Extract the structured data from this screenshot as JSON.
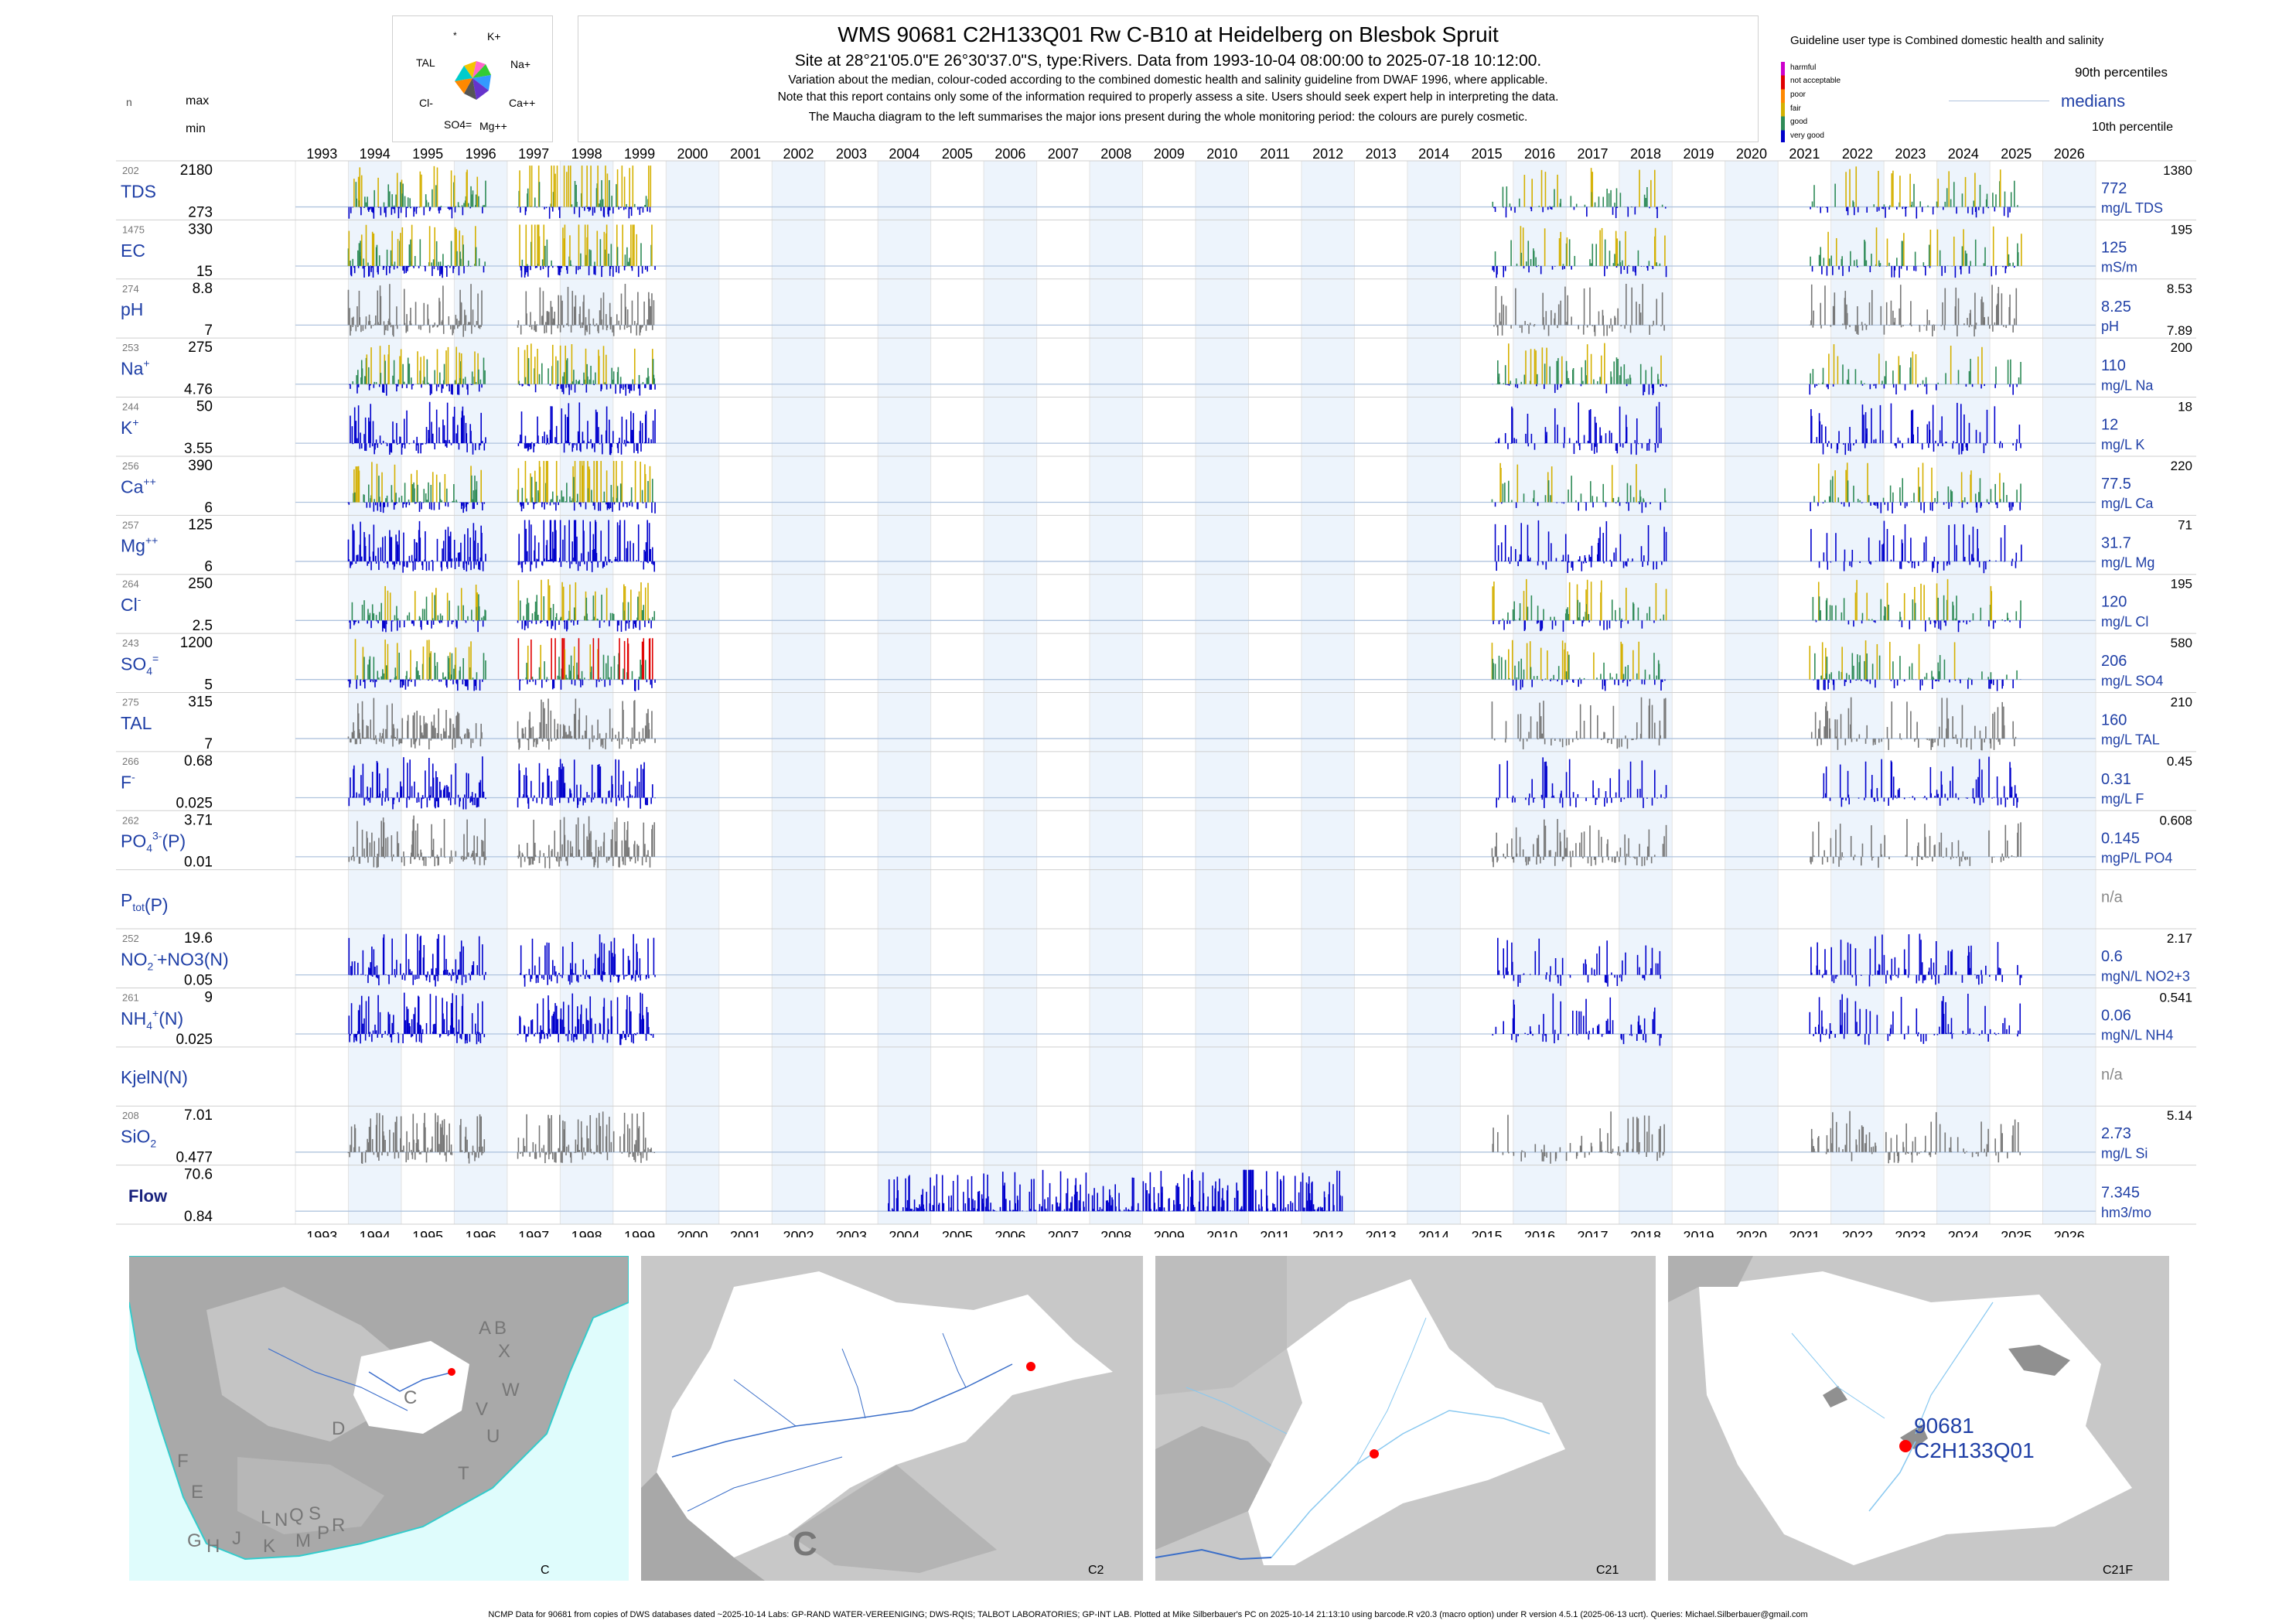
{
  "header": {
    "title": "WMS 90681 C2H133Q01 Rw C-B10 at Heidelberg on Blesbok Spruit",
    "site_line": "Site at 28°21'05.0\"E 26°30'37.0\"S, type:Rivers.  Data from 1993-10-04 08:00:00 to 2025-07-18 10:12:00.",
    "note1": "Variation about the median,  colour-coded according to the combined domestic health and salinity guideline from DWAF 1996, where applicable.",
    "note2": "Note that this report contains only some of the information required to properly assess a site. Users should seek expert help in interpreting the data.",
    "note3": "The Maucha diagram to the left summarises the major ions present during the whole monitoring period: the colours are purely cosmetic."
  },
  "maucha": {
    "labels": {
      "k": "K+",
      "na": "Na+",
      "ca": "Ca++",
      "mg": "Mg++",
      "so4": "SO4=",
      "cl": "Cl-",
      "tal": "TAL"
    }
  },
  "left_header": {
    "n": "n",
    "max": "max",
    "min": "min"
  },
  "legend": {
    "title": "Guideline user type is Combined domestic health and salinity",
    "items": [
      {
        "label": "harmful",
        "color": "#cc00cc"
      },
      {
        "label": "not acceptable",
        "color": "#e00000"
      },
      {
        "label": "poor",
        "color": "#ff8800"
      },
      {
        "label": "fair",
        "color": "#d4b000"
      },
      {
        "label": "good",
        "color": "#2e8b57"
      },
      {
        "label": "very good",
        "color": "#0000cc"
      }
    ],
    "p90": "90th percentiles",
    "medians": "medians",
    "p10": "10th percentile"
  },
  "chart_data": {
    "type": "bar",
    "x_years": [
      "1993",
      "1994",
      "1995",
      "1996",
      "1997",
      "1998",
      "1999",
      "2000",
      "2001",
      "2002",
      "2003",
      "2004",
      "2005",
      "2006",
      "2007",
      "2008",
      "2009",
      "2010",
      "2011",
      "2012",
      "2013",
      "2014",
      "2015",
      "2016",
      "2017",
      "2018",
      "2019",
      "2020",
      "2021",
      "2022",
      "2023",
      "2024",
      "2025",
      "2026"
    ],
    "rows": [
      {
        "key": "tds",
        "label": "TDS",
        "sup": "",
        "sub": "",
        "n": "202",
        "max": "2180",
        "min": "273",
        "median": "772",
        "unit": "mg/L TDS",
        "p90": "1380",
        "p10": "",
        "color": "#2e8b57",
        "mode": "guide"
      },
      {
        "key": "ec",
        "label": "EC",
        "sup": "",
        "sub": "",
        "n": "1475",
        "max": "330",
        "min": "15",
        "median": "125",
        "unit": "mS/m",
        "p90": "195",
        "p10": "",
        "color": "#2e8b57",
        "mode": "guide"
      },
      {
        "key": "ph",
        "label": "pH",
        "sup": "",
        "sub": "",
        "n": "274",
        "max": "8.8",
        "min": "7",
        "median": "8.25",
        "unit": "pH",
        "p90": "8.53",
        "p10": "7.89",
        "color": "#777777",
        "mode": "grey"
      },
      {
        "key": "na",
        "label": "Na",
        "sup": "+",
        "sub": "",
        "n": "253",
        "max": "275",
        "min": "4.76",
        "median": "110",
        "unit": "mg/L Na",
        "p90": "200",
        "p10": "",
        "color": "#2e8b57",
        "mode": "guide"
      },
      {
        "key": "k",
        "label": "K",
        "sup": "+",
        "sub": "",
        "n": "244",
        "max": "50",
        "min": "3.55",
        "median": "12",
        "unit": "mg/L K",
        "p90": "18",
        "p10": "",
        "color": "#0000cc",
        "mode": "blue"
      },
      {
        "key": "ca",
        "label": "Ca",
        "sup": "++",
        "sub": "",
        "n": "256",
        "max": "390",
        "min": "6",
        "median": "77.5",
        "unit": "mg/L Ca",
        "p90": "220",
        "p10": "",
        "color": "#2e8b57",
        "mode": "guide"
      },
      {
        "key": "mg",
        "label": "Mg",
        "sup": "++",
        "sub": "",
        "n": "257",
        "max": "125",
        "min": "6",
        "median": "31.7",
        "unit": "mg/L Mg",
        "p90": "71",
        "p10": "",
        "color": "#0000cc",
        "mode": "blue"
      },
      {
        "key": "cl",
        "label": "Cl",
        "sup": "-",
        "sub": "",
        "n": "264",
        "max": "250",
        "min": "2.5",
        "median": "120",
        "unit": "mg/L Cl",
        "p90": "195",
        "p10": "",
        "color": "#2e8b57",
        "mode": "guide"
      },
      {
        "key": "so4",
        "label": "SO",
        "sup": "=",
        "sub": "4",
        "n": "243",
        "max": "1200",
        "min": "5",
        "median": "206",
        "unit": "mg/L SO4",
        "p90": "580",
        "p10": "",
        "color": "#2e8b57",
        "mode": "guide"
      },
      {
        "key": "tal",
        "label": "TAL",
        "sup": "",
        "sub": "",
        "n": "275",
        "max": "315",
        "min": "7",
        "median": "160",
        "unit": "mg/L TAL",
        "p90": "210",
        "p10": "",
        "color": "#777777",
        "mode": "grey"
      },
      {
        "key": "f",
        "label": "F",
        "sup": "-",
        "sub": "",
        "n": "266",
        "max": "0.68",
        "min": "0.025",
        "median": "0.31",
        "unit": "mg/L F",
        "p90": "0.45",
        "p10": "",
        "color": "#0000cc",
        "mode": "blue"
      },
      {
        "key": "po4",
        "label": "PO",
        "sup": "3-",
        "sub": "4",
        "label2": "(P)",
        "n": "262",
        "max": "3.71",
        "min": "0.01",
        "median": "0.145",
        "unit": "mgP/L PO4",
        "p90": "0.608",
        "p10": "",
        "color": "#777777",
        "mode": "grey"
      },
      {
        "key": "ptot",
        "label": "P",
        "sup": "",
        "sub": "tot",
        "label2": "(P)",
        "n": "",
        "max": "",
        "min": "",
        "median": "n/a",
        "unit": "",
        "p90": "",
        "p10": "",
        "color": "#777777",
        "mode": "none"
      },
      {
        "key": "no",
        "label": "NO",
        "sup": "-",
        "sub": "2",
        "label2": "+NO3(N)",
        "n": "252",
        "max": "19.6",
        "min": "0.05",
        "median": "0.6",
        "unit": "mgN/L NO2+3",
        "p90": "2.17",
        "p10": "",
        "color": "#0000cc",
        "mode": "blue"
      },
      {
        "key": "nh4",
        "label": "NH",
        "sup": "+",
        "sub": "4",
        "label2": "(N)",
        "n": "261",
        "max": "9",
        "min": "0.025",
        "median": "0.06",
        "unit": "mgN/L NH4",
        "p90": "0.541",
        "p10": "",
        "color": "#0000cc",
        "mode": "blue"
      },
      {
        "key": "kjel",
        "label": "KjelN(N)",
        "sup": "",
        "sub": "",
        "n": "",
        "max": "",
        "min": "",
        "median": "n/a",
        "unit": "",
        "p90": "",
        "p10": "",
        "color": "#777777",
        "mode": "none"
      },
      {
        "key": "sio2",
        "label": "SiO",
        "sup": "",
        "sub": "2",
        "n": "208",
        "max": "7.01",
        "min": "0.477",
        "median": "2.73",
        "unit": "mg/L Si",
        "p90": "5.14",
        "p10": "",
        "color": "#777777",
        "mode": "grey"
      },
      {
        "key": "flow",
        "label": "Flow",
        "sup": "",
        "sub": "",
        "n": "",
        "max": "70.6",
        "min": "0.84",
        "median": "7.345",
        "unit": "hm3/mo",
        "p90": "",
        "p10": "",
        "color": "#0000cc",
        "mode": "flow"
      }
    ]
  },
  "maps": [
    {
      "label": "C",
      "letters": [
        "A",
        "B",
        "X",
        "W",
        "C",
        "V",
        "D",
        "U",
        "T",
        "E",
        "F",
        "G",
        "H",
        "J",
        "K",
        "L",
        "M",
        "N",
        "P",
        "Q",
        "R",
        "S"
      ]
    },
    {
      "label": "C2",
      "big_letter": "C"
    },
    {
      "label": "C21"
    },
    {
      "label": "C21F",
      "site_id": "90681",
      "site_code": "C2H133Q01"
    }
  ],
  "footer": "NCMP Data for 90681 from copies of DWS databases dated ~2025-10-14 Labs: GP-RAND WATER-VEREENIGING; DWS-RQIS; TALBOT LABORATORIES; GP-INT LAB. Plotted at Mike Silberbauer's PC on 2025-10-14 21:13:10 using barcode.R v20.3 (macro option) under R version 4.5.1 (2025-06-13 ucrt). Queries: Michael.Silberbauer@gmail.com"
}
